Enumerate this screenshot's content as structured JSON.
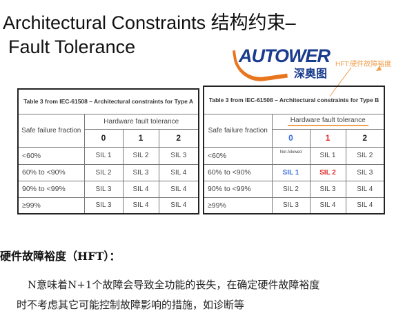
{
  "title": {
    "line1": "Architectural Constraints 结构约束–",
    "line2": "Fault Tolerance"
  },
  "logo": {
    "text": "AUTOWER",
    "cn": "深奥图",
    "swoosh_color": "#e8761e",
    "text_color": "#1a3c8e"
  },
  "annotation": {
    "text": "HFT:硬件故障裕度",
    "color": "#f0a050"
  },
  "table_a": {
    "caption": "Table 3 from IEC-61508 – Architectural constraints for Type A",
    "row_header": "Safe failure fraction",
    "col_header": "Hardware fault tolerance",
    "cols": [
      "0",
      "1",
      "2"
    ],
    "rows": [
      {
        "sff": "<60%",
        "cells": [
          "SIL 1",
          "SIL 2",
          "SIL 3"
        ]
      },
      {
        "sff": "60% to <90%",
        "cells": [
          "SIL 2",
          "SIL 3",
          "SIL 4"
        ]
      },
      {
        "sff": "90% to <99%",
        "cells": [
          "SIL 3",
          "SIL 4",
          "SIL 4"
        ]
      },
      {
        "sff": "≥99%",
        "cells": [
          "SIL 3",
          "SIL 4",
          "SIL 4"
        ]
      }
    ]
  },
  "table_b": {
    "caption": "Table 3 from IEC-61508 – Architectural constraints for Type B",
    "row_header": "Safe failure fraction",
    "col_header": "Hardware fault tolerance",
    "cols": [
      "0",
      "1",
      "2"
    ],
    "col_colors": [
      "#3a6de0",
      "#e02a2a",
      "#222222"
    ],
    "rows": [
      {
        "sff": "<60%",
        "cells": [
          "Not Allowed",
          "SIL 1",
          "SIL 2"
        ]
      },
      {
        "sff": "60% to <90%",
        "cells": [
          "SIL 1",
          "SIL 2",
          "SIL 3"
        ]
      },
      {
        "sff": "90% to <99%",
        "cells": [
          "SIL 2",
          "SIL 3",
          "SIL 4"
        ]
      },
      {
        "sff": "≥99%",
        "cells": [
          "SIL 3",
          "SIL 4",
          "SIL 4"
        ]
      }
    ]
  },
  "body": {
    "heading": "硬件故障裕度（HFT）：",
    "line1": "N意味着N+1个故障会导致全功能的丧失，在确定硬件故障裕度",
    "line2": "时不考虑其它可能控制故障影响的措施，如诊断等"
  }
}
